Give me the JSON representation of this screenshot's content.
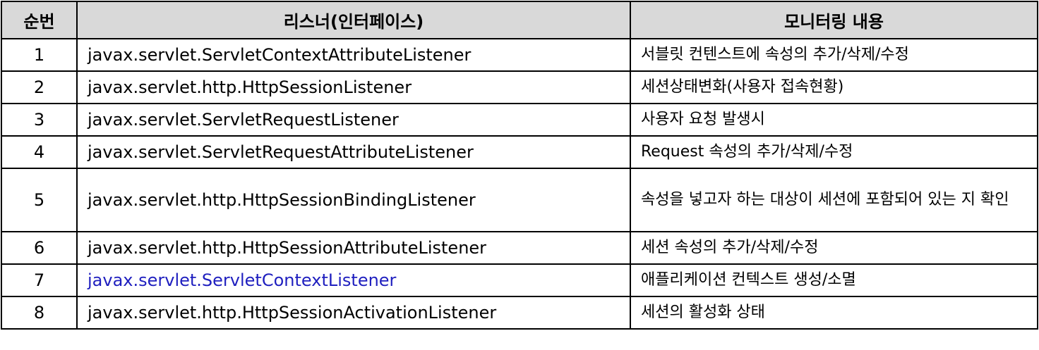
{
  "table": {
    "headers": [
      "순번",
      "리스너(인터페이스)",
      "모니터링 내용"
    ],
    "rows": [
      {
        "no": "1",
        "interface": "javax.servlet.ServletContextAttributeListener",
        "desc": "서블릿 컨텐스트에 속성의 추가/삭제/수정"
      },
      {
        "no": "2",
        "interface": "javax.servlet.http.HttpSessionListener",
        "desc": "세션상태변화(사용자 접속현황)"
      },
      {
        "no": "3",
        "interface": "javax.servlet.ServletRequestListener",
        "desc": "사용자 요청 발생시"
      },
      {
        "no": "4",
        "interface": "javax.servlet.ServletRequestAttributeListener",
        "desc": "Request 속성의 추가/삭제/수정"
      },
      {
        "no": "5",
        "interface": "javax.servlet.http.HttpSessionBindingListener",
        "desc": "속성을 넣고자 하는 대상이 세션에 포함되어 있는 지 확인"
      },
      {
        "no": "6",
        "interface": "javax.servlet.http.HttpSessionAttributeListener",
        "desc": "세션 속성의 추가/삭제/수정"
      },
      {
        "no": "7",
        "interface": "javax.servlet.ServletContextListener",
        "desc": "애플리케이션 컨텍스트 생성/소멸"
      },
      {
        "no": "8",
        "interface": "javax.servlet.http.HttpSessionActivationListener",
        "desc": "세션의 활성화 상태"
      }
    ]
  },
  "colors": {
    "header_bg": "#d9d9d9",
    "border": "#000000",
    "highlight_text": "#1f1fbf"
  }
}
